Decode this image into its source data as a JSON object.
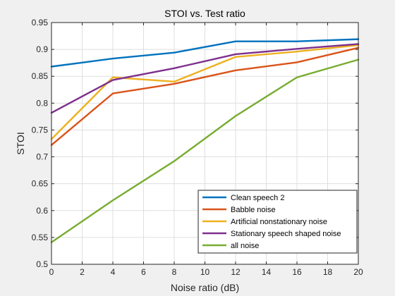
{
  "chart_data": {
    "type": "line",
    "title": "STOI vs. Test ratio",
    "xlabel": "Noise ratio (dB)",
    "ylabel": "STOI",
    "xlim": [
      0,
      20
    ],
    "ylim": [
      0.5,
      0.95
    ],
    "xticks": [
      0,
      2,
      4,
      6,
      8,
      10,
      12,
      14,
      16,
      18,
      20
    ],
    "yticks": [
      0.5,
      0.55,
      0.6,
      0.65,
      0.7,
      0.75,
      0.8,
      0.85,
      0.9,
      0.95
    ],
    "xtick_labels": [
      "0",
      "2",
      "4",
      "6",
      "8",
      "10",
      "12",
      "14",
      "16",
      "18",
      "20"
    ],
    "ytick_labels": [
      "0.5",
      "0.55",
      "0.6",
      "0.65",
      "0.7",
      "0.75",
      "0.8",
      "0.85",
      "0.9",
      "0.95"
    ],
    "grid": true,
    "legend_location": "bottom-right",
    "x": [
      0,
      4,
      8,
      12,
      16,
      20
    ],
    "series": [
      {
        "name": "Clean speech 2",
        "color": "#0072BD",
        "values": [
          0.868,
          0.883,
          0.894,
          0.915,
          0.915,
          0.919
        ]
      },
      {
        "name": "Babble noise",
        "color": "#D95319",
        "values": [
          0.722,
          0.818,
          0.836,
          0.861,
          0.876,
          0.903
        ]
      },
      {
        "name": "Artificial nonstationary noise",
        "color": "#EDB120",
        "values": [
          0.733,
          0.848,
          0.84,
          0.886,
          0.896,
          0.908
        ]
      },
      {
        "name": "Stationary speech shaped noise",
        "color": "#7E2F8E",
        "values": [
          0.782,
          0.843,
          0.865,
          0.891,
          0.901,
          0.91
        ]
      },
      {
        "name": "all noise",
        "color": "#77AC30",
        "values": [
          0.541,
          0.619,
          0.692,
          0.776,
          0.848,
          0.881
        ]
      }
    ]
  }
}
